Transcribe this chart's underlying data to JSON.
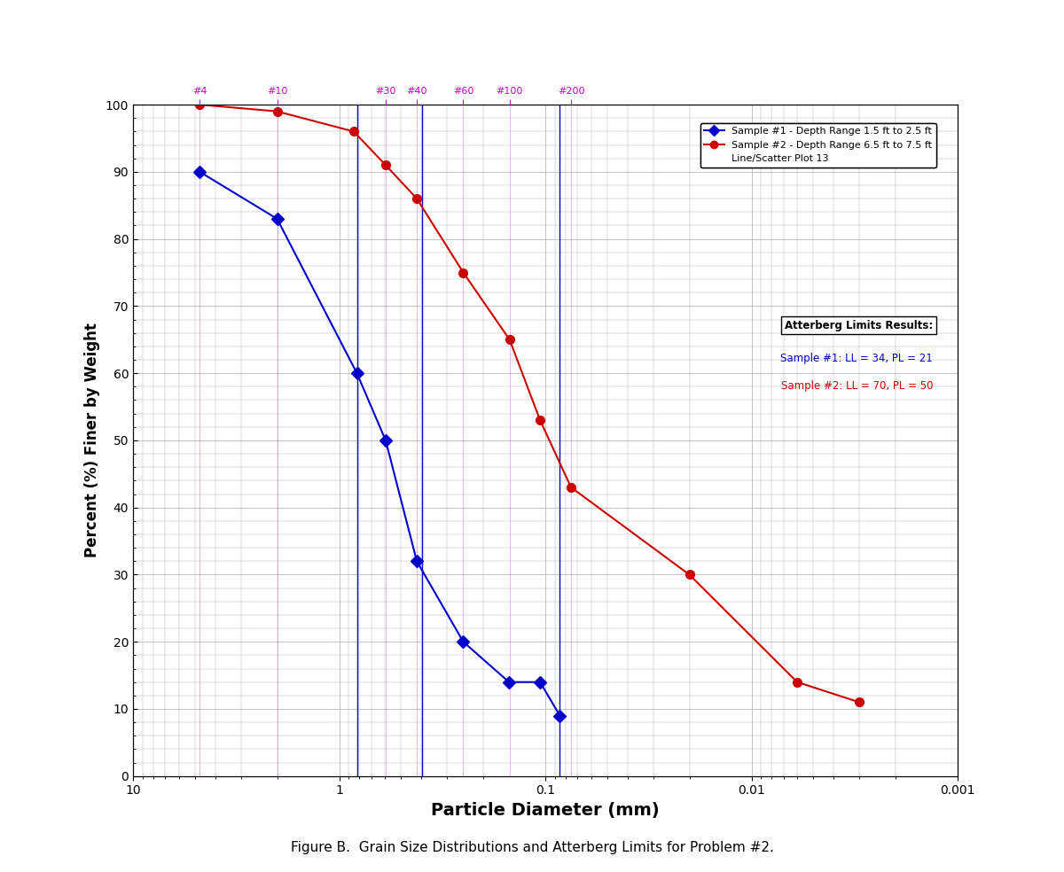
{
  "sample1_x": [
    4.75,
    2.0,
    0.82,
    0.595,
    0.42,
    0.25,
    0.15,
    0.106,
    0.085
  ],
  "sample1_y": [
    90,
    83,
    60,
    50,
    32,
    20,
    14,
    14,
    9
  ],
  "sample2_x": [
    4.75,
    2.0,
    0.85,
    0.595,
    0.42,
    0.25,
    0.149,
    0.106,
    0.075,
    0.02,
    0.006,
    0.003
  ],
  "sample2_y": [
    100,
    99,
    96,
    91,
    86,
    75,
    65,
    53,
    43,
    30,
    14,
    11
  ],
  "sample1_color": "#0000CC",
  "sample2_color": "#CC0000",
  "xlabel": "Particle Diameter (mm)",
  "ylabel": "Percent (%) Finer by Weight",
  "figure_caption": "Figure B.  Grain Size Distributions and Atterberg Limits for Problem #2.",
  "legend1_label": "Sample #1 - Depth Range 1.5 ft to 2.5 ft",
  "legend2_label": "Sample #2 - Depth Range 6.5 ft to 7.5 ft",
  "legend3_label": "Line/Scatter Plot 13",
  "atterberg_title": "Atterberg Limits Results:",
  "atterberg_s1": "Sample #1: LL = 34, PL = 21",
  "atterberg_s2": "Sample #2: LL = 70, PL = 50",
  "sieve_sizes": {
    "#4": 4.75,
    "#10": 2.0,
    "#30": 0.595,
    "#40": 0.42,
    "#60": 0.25,
    "#100": 0.149,
    "#200": 0.075
  },
  "d60_mm": 0.82,
  "d30_mm": 0.395,
  "d10_mm": 0.085,
  "xlim_left": 10,
  "xlim_right": 0.001,
  "ylim_bottom": 0,
  "ylim_top": 100,
  "background_color": "#FFFFFF",
  "grid_color": "#AAAAAA",
  "sieve_label_color": "#CC00CC"
}
